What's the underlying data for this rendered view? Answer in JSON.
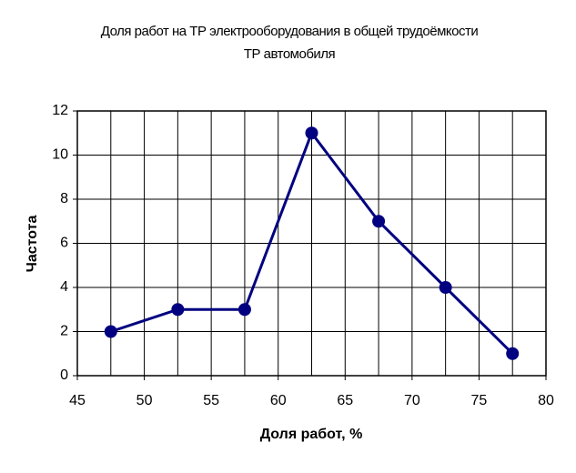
{
  "chart_data": {
    "type": "line",
    "title": [
      "Доля работ на ТР электрооборудования в общей трудоёмкости",
      "ТР автомобиля"
    ],
    "xlabel": "Доля работ, %",
    "ylabel": "Частота",
    "x": [
      47.5,
      52.5,
      57.5,
      62.5,
      67.5,
      72.5,
      77.5
    ],
    "series": [
      {
        "color": "#000080",
        "values": [
          2,
          3,
          3,
          11,
          7,
          4,
          1
        ]
      }
    ],
    "xlim": [
      45,
      80
    ],
    "xticks": [
      45,
      50,
      55,
      60,
      65,
      70,
      75,
      80
    ],
    "ylim": [
      0,
      12
    ],
    "yticks": [
      0,
      2,
      4,
      6,
      8,
      10,
      12
    ],
    "grid": true
  }
}
